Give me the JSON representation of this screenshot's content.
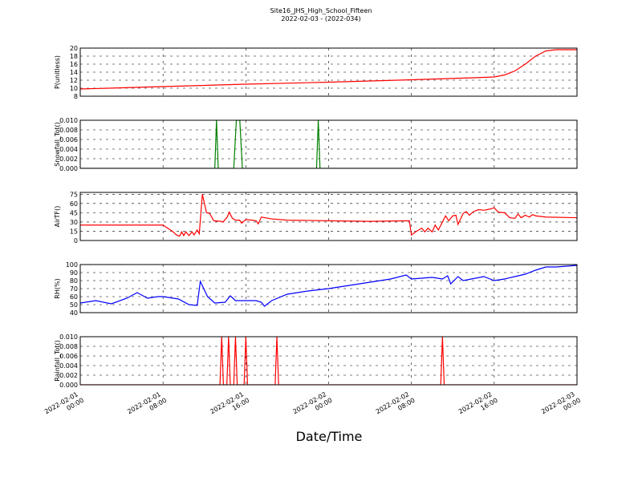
{
  "chart_data": [
    {
      "type": "line",
      "title": "Site16_JHS_High_School_Fifteen",
      "subtitle": "2022-02-03 - (2022-034)",
      "ylabel": "P(unitless)",
      "xlim": [
        "2022-02-01 00:00",
        "2022-02-03 00:00"
      ],
      "xticks": [
        "2022-02-01 00:00",
        "2022-02-01 08:00",
        "2022-02-01 16:00",
        "2022-02-02 00:00",
        "2022-02-02 08:00",
        "2022-02-02 16:00",
        "2022-02-03 00:00"
      ],
      "ylim": [
        8,
        20
      ],
      "yticks": [
        8,
        10,
        12,
        14,
        16,
        18,
        20
      ],
      "grid": true,
      "color": "#ff0000",
      "x": [
        "2022-02-01 00:00",
        "2022-02-01 08:00",
        "2022-02-01 16:00",
        "2022-02-02 00:00",
        "2022-02-02 08:00",
        "2022-02-02 14:00",
        "2022-02-02 16:00",
        "2022-02-02 17:00",
        "2022-02-02 18:00",
        "2022-02-02 19:00",
        "2022-02-02 20:00",
        "2022-02-02 21:00",
        "2022-02-02 22:00",
        "2022-02-03 00:00"
      ],
      "values": [
        9.8,
        10.4,
        11.0,
        11.5,
        12.1,
        12.6,
        12.8,
        13.3,
        14.3,
        16.0,
        18.0,
        19.3,
        19.6,
        19.6
      ]
    },
    {
      "type": "line",
      "ylabel": "Snowfall_Tot()",
      "xlim": [
        "2022-02-01 00:00",
        "2022-02-03 00:00"
      ],
      "xticks": [
        "2022-02-01 00:00",
        "2022-02-01 08:00",
        "2022-02-01 16:00",
        "2022-02-02 00:00",
        "2022-02-02 08:00",
        "2022-02-02 16:00",
        "2022-02-03 00:00"
      ],
      "ylim": [
        0,
        0.01
      ],
      "yticks": [
        {
          "value": 0,
          "label": "0.000"
        },
        0.002,
        0.004,
        0.006,
        0.008,
        {
          "value": 0.01,
          "label": "0.010"
        }
      ],
      "grid": true,
      "color": "#008000",
      "x": [
        "2022-02-01 00:00",
        "2022-02-01 13:00",
        "2022-02-01 13:10",
        "2022-02-01 13:20",
        "2022-02-01 14:50",
        "2022-02-01 15:05",
        "2022-02-01 15:25",
        "2022-02-01 15:40",
        "2022-02-01 22:50",
        "2022-02-01 23:00",
        "2022-02-01 23:10",
        "2022-02-03 00:00"
      ],
      "values": [
        0,
        0,
        0.01,
        0,
        0,
        0.01,
        0.01,
        0,
        0,
        0.01,
        0,
        0
      ]
    },
    {
      "type": "line",
      "ylabel": "AirTF()",
      "xlim": [
        "2022-02-01 00:00",
        "2022-02-03 00:00"
      ],
      "xticks": [
        "2022-02-01 00:00",
        "2022-02-01 08:00",
        "2022-02-01 16:00",
        "2022-02-02 00:00",
        "2022-02-02 08:00",
        "2022-02-02 16:00",
        "2022-02-03 00:00"
      ],
      "ylim": [
        0,
        78
      ],
      "yticks": [
        0,
        15,
        30,
        45,
        60,
        75
      ],
      "grid": true,
      "color": "#ff0000",
      "x": [
        "2022-02-01 00:00",
        "2022-02-01 08:00",
        "2022-02-01 08:54",
        "2022-02-01 09:18",
        "2022-02-01 09:36",
        "2022-02-01 09:48",
        "2022-02-01 10:00",
        "2022-02-01 10:12",
        "2022-02-01 10:30",
        "2022-02-01 10:48",
        "2022-02-01 11:00",
        "2022-02-01 11:18",
        "2022-02-01 11:30",
        "2022-02-01 11:48",
        "2022-02-01 12:12",
        "2022-02-01 12:30",
        "2022-02-01 12:54",
        "2022-02-01 13:36",
        "2022-02-01 13:48",
        "2022-02-01 14:12",
        "2022-02-01 14:24",
        "2022-02-01 14:42",
        "2022-02-01 15:00",
        "2022-02-01 15:24",
        "2022-02-01 15:36",
        "2022-02-01 16:00",
        "2022-02-01 16:36",
        "2022-02-01 17:00",
        "2022-02-01 17:12",
        "2022-02-01 17:30",
        "2022-02-01 18:30",
        "2022-02-01 20:00",
        "2022-02-02 00:00",
        "2022-02-02 04:00",
        "2022-02-02 07:48",
        "2022-02-02 08:00",
        "2022-02-02 08:30",
        "2022-02-02 09:00",
        "2022-02-02 09:18",
        "2022-02-02 09:36",
        "2022-02-02 10:00",
        "2022-02-02 10:18",
        "2022-02-02 10:36",
        "2022-02-02 11:00",
        "2022-02-02 11:18",
        "2022-02-02 11:36",
        "2022-02-02 12:00",
        "2022-02-02 12:18",
        "2022-02-02 12:30",
        "2022-02-02 13:00",
        "2022-02-02 13:18",
        "2022-02-02 13:36",
        "2022-02-02 14:00",
        "2022-02-02 14:30",
        "2022-02-02 15:00",
        "2022-02-02 15:36",
        "2022-02-02 16:00",
        "2022-02-02 16:24",
        "2022-02-02 17:00",
        "2022-02-02 17:30",
        "2022-02-02 18:00",
        "2022-02-02 18:18",
        "2022-02-02 18:36",
        "2022-02-02 19:00",
        "2022-02-02 19:24",
        "2022-02-02 19:42",
        "2022-02-02 20:00",
        "2022-02-02 21:00",
        "2022-02-03 00:00"
      ],
      "values": [
        25,
        25,
        15,
        9,
        7,
        14,
        8,
        14,
        8,
        14,
        9,
        17,
        11,
        75,
        45,
        44,
        32,
        31,
        30,
        38,
        46,
        36,
        33,
        33,
        28,
        34,
        33,
        32,
        27,
        38,
        35,
        33,
        32,
        31,
        32,
        9,
        15,
        20,
        14,
        20,
        14,
        25,
        17,
        30,
        40,
        32,
        40,
        41,
        26,
        44,
        47,
        41,
        47,
        50,
        49,
        51,
        53,
        46,
        45,
        37,
        36,
        43,
        37,
        41,
        38,
        42,
        40,
        38,
        37
      ]
    },
    {
      "type": "line",
      "ylabel": "RH(%)",
      "xlim": [
        "2022-02-01 00:00",
        "2022-02-03 00:00"
      ],
      "xticks": [
        "2022-02-01 00:00",
        "2022-02-01 08:00",
        "2022-02-01 16:00",
        "2022-02-02 00:00",
        "2022-02-02 08:00",
        "2022-02-02 16:00",
        "2022-02-03 00:00"
      ],
      "ylim": [
        40,
        100
      ],
      "yticks": [
        40,
        50,
        60,
        70,
        80,
        90,
        100
      ],
      "grid": true,
      "color": "#0000ff",
      "x": [
        "2022-02-01 00:00",
        "2022-02-01 01:30",
        "2022-02-01 03:00",
        "2022-02-01 04:30",
        "2022-02-01 05:30",
        "2022-02-01 06:30",
        "2022-02-01 07:30",
        "2022-02-01 08:00",
        "2022-02-01 09:30",
        "2022-02-01 10:30",
        "2022-02-01 11:18",
        "2022-02-01 11:36",
        "2022-02-01 12:18",
        "2022-02-01 13:00",
        "2022-02-01 14:00",
        "2022-02-01 14:30",
        "2022-02-01 15:00",
        "2022-02-01 17:00",
        "2022-02-01 17:30",
        "2022-02-01 17:48",
        "2022-02-01 18:30",
        "2022-02-01 20:00",
        "2022-02-01 22:00",
        "2022-02-02 00:00",
        "2022-02-02 02:00",
        "2022-02-02 04:00",
        "2022-02-02 06:00",
        "2022-02-02 07:30",
        "2022-02-02 08:00",
        "2022-02-02 10:00",
        "2022-02-02 11:00",
        "2022-02-02 11:30",
        "2022-02-02 11:48",
        "2022-02-02 12:30",
        "2022-02-02 13:00",
        "2022-02-02 15:00",
        "2022-02-02 16:00",
        "2022-02-02 17:00",
        "2022-02-02 18:00",
        "2022-02-02 19:00",
        "2022-02-02 20:00",
        "2022-02-02 21:00",
        "2022-02-02 22:00",
        "2022-02-03 00:00"
      ],
      "values": [
        52,
        55,
        51,
        58,
        65,
        58,
        60,
        60,
        57,
        50,
        49,
        79,
        60,
        52,
        53,
        61,
        55,
        55,
        53,
        48,
        55,
        63,
        67,
        70,
        74,
        78,
        82,
        87,
        82,
        84,
        82,
        86,
        76,
        85,
        80,
        85,
        80,
        82,
        85,
        88,
        93,
        97,
        97,
        99
      ]
    },
    {
      "type": "line",
      "ylabel": "Rainfall_Tot()",
      "xlabel": "Date/Time",
      "xlim": [
        "2022-02-01 00:00",
        "2022-02-03 00:00"
      ],
      "xticks": [
        "2022-02-01 00:00",
        "2022-02-01 08:00",
        "2022-02-01 16:00",
        "2022-02-02 00:00",
        "2022-02-02 08:00",
        "2022-02-02 16:00",
        "2022-02-03 00:00"
      ],
      "ylim": [
        0,
        0.01
      ],
      "yticks": [
        {
          "value": 0,
          "label": "0.000"
        },
        0.002,
        0.004,
        0.006,
        0.008,
        {
          "value": 0.01,
          "label": "0.010"
        }
      ],
      "grid": true,
      "color": "#ff0000",
      "x": [
        "2022-02-01 00:00",
        "2022-02-01 13:30",
        "2022-02-01 13:40",
        "2022-02-01 13:50",
        "2022-02-01 14:10",
        "2022-02-01 14:20",
        "2022-02-01 14:30",
        "2022-02-01 14:50",
        "2022-02-01 15:00",
        "2022-02-01 15:10",
        "2022-02-01 15:50",
        "2022-02-01 16:00",
        "2022-02-01 16:10",
        "2022-02-01 18:50",
        "2022-02-01 19:00",
        "2022-02-01 19:10",
        "2022-02-02 10:50",
        "2022-02-02 11:00",
        "2022-02-02 11:10",
        "2022-02-03 00:00"
      ],
      "values": [
        0,
        0,
        0.01,
        0,
        0,
        0.01,
        0,
        0,
        0.01,
        0,
        0,
        0.01,
        0,
        0,
        0.01,
        0,
        0,
        0.01,
        0,
        0
      ]
    }
  ]
}
